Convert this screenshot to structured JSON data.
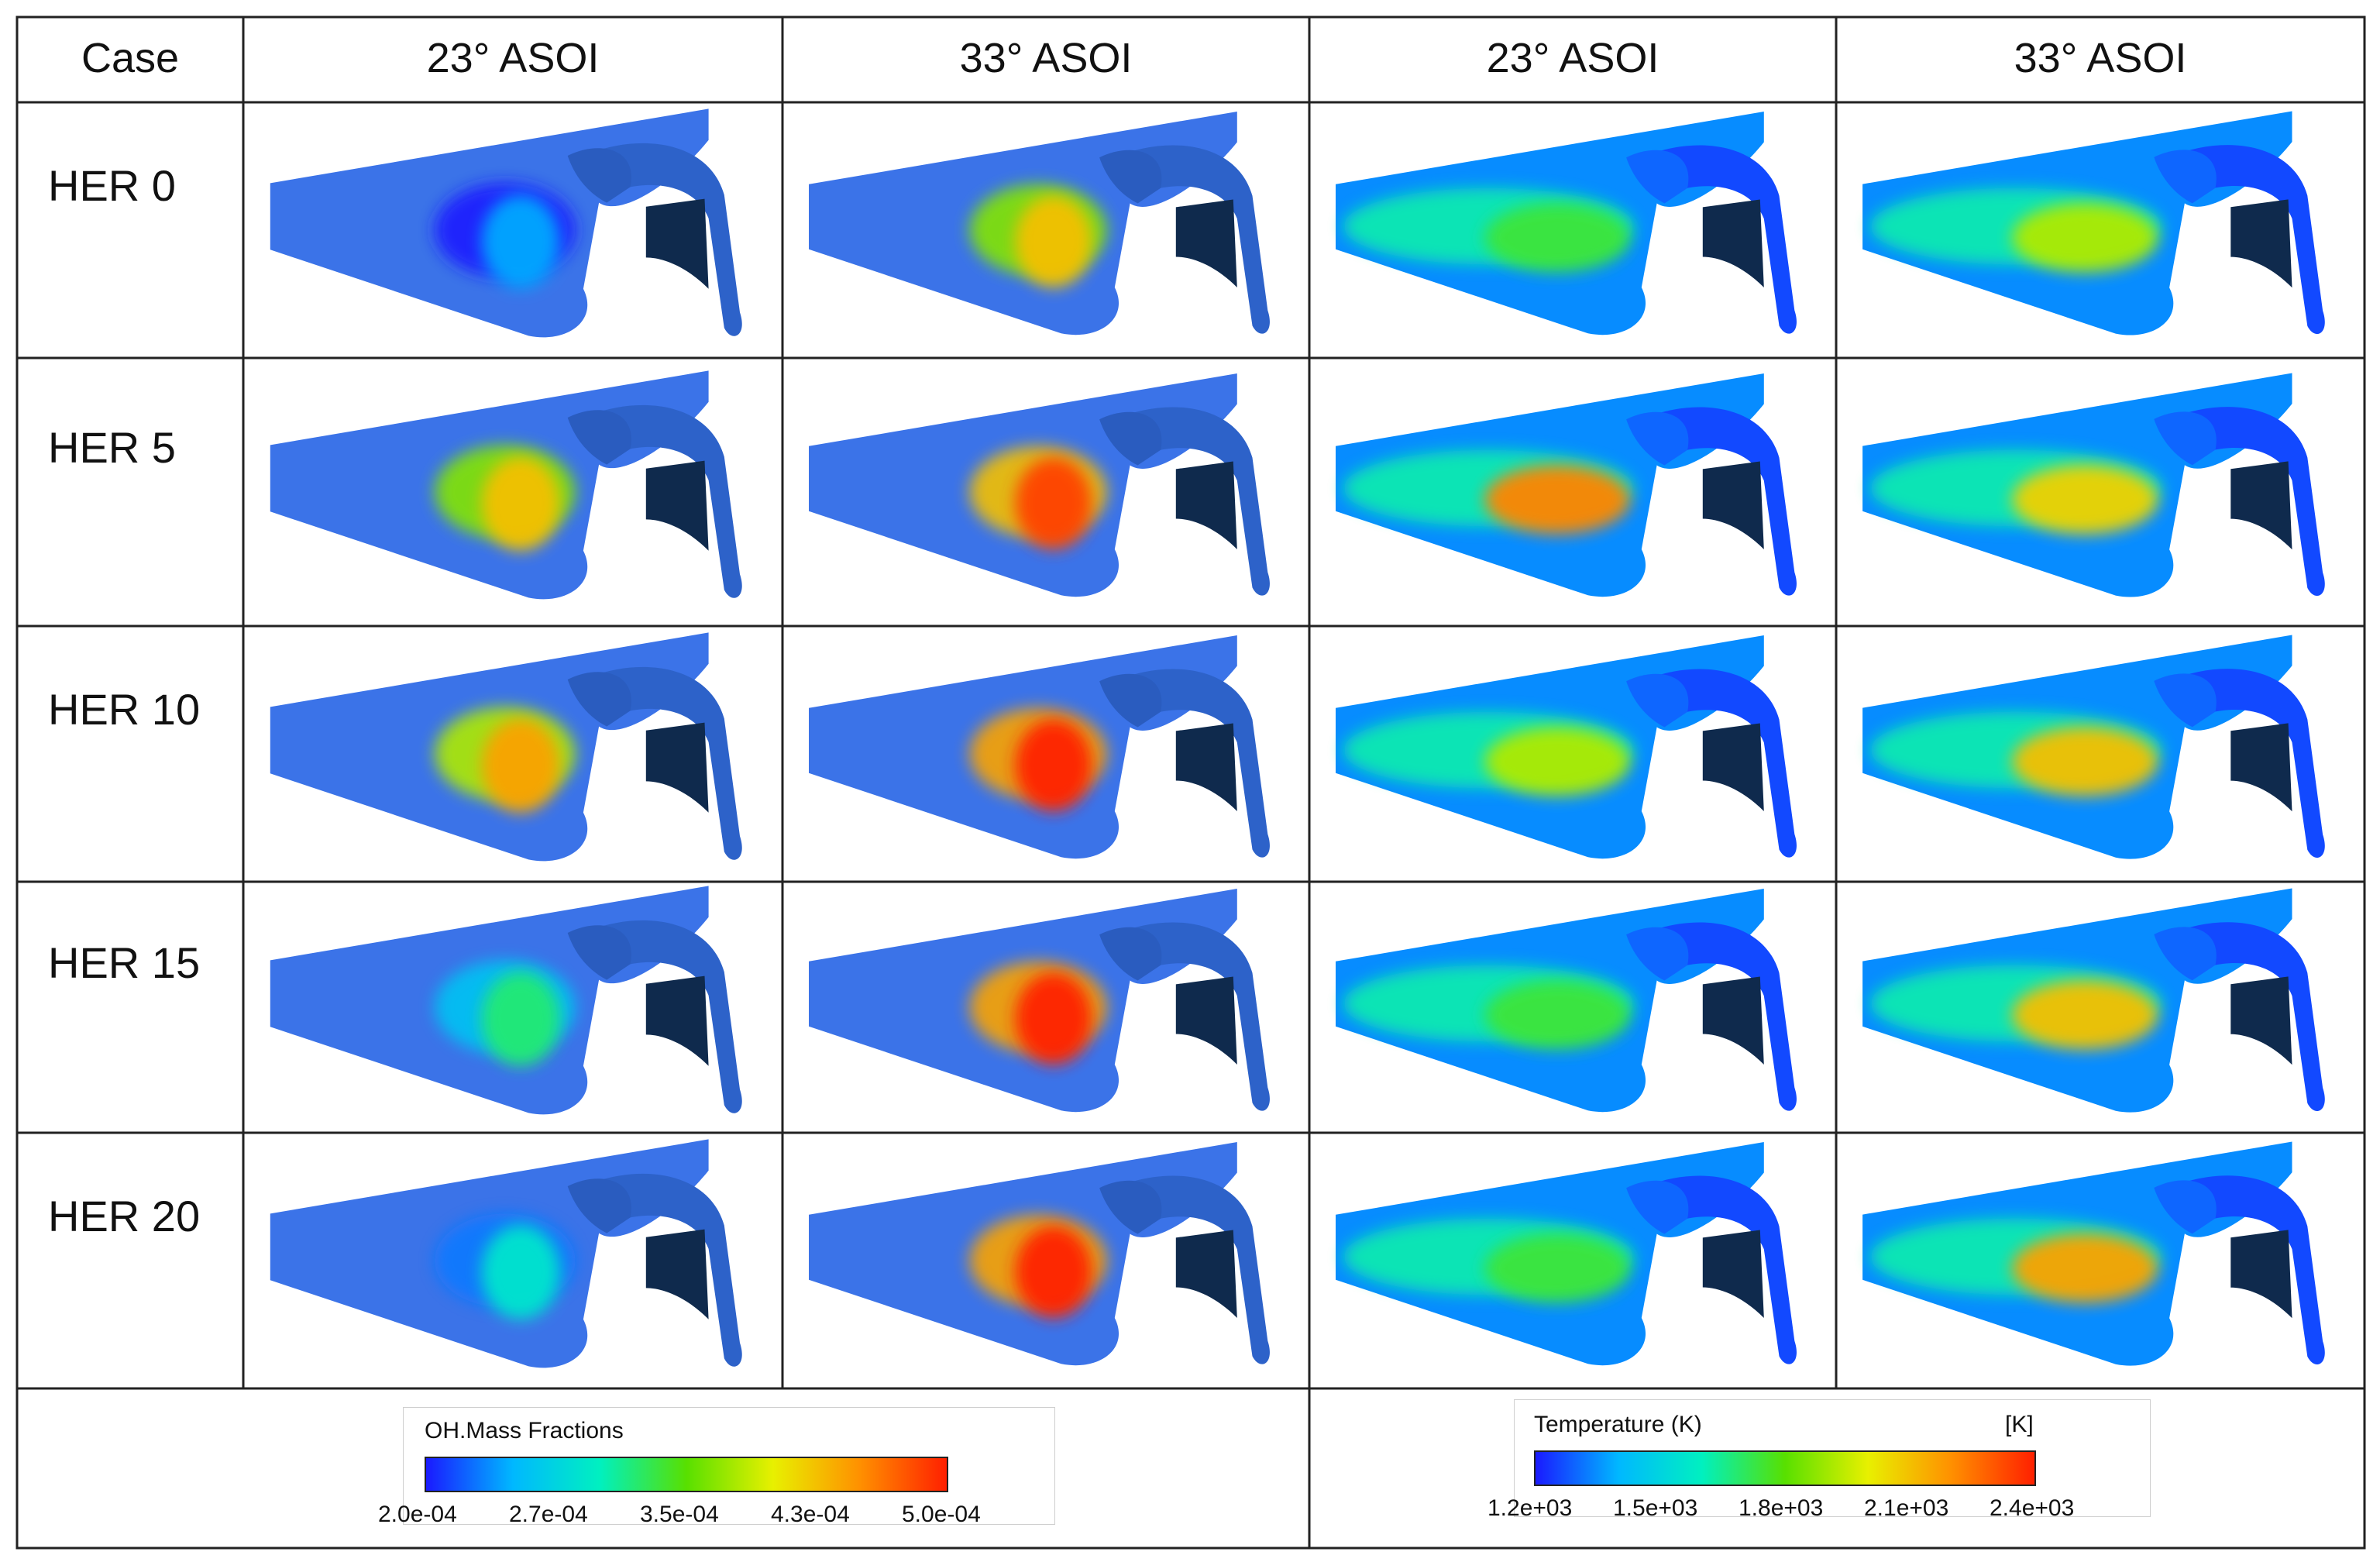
{
  "table": {
    "header": {
      "case_label": "Case",
      "columns": [
        "23° ASOI",
        "33° ASOI",
        "23° ASOI",
        "33° ASOI"
      ]
    },
    "rows": [
      {
        "label": "HER 0",
        "oh_23": 0.15,
        "oh_33": 0.75,
        "t_23": 0.45,
        "t_33": 0.6
      },
      {
        "label": "HER 5",
        "oh_23": 0.75,
        "oh_33": 0.95,
        "t_23": 0.85,
        "t_33": 0.72
      },
      {
        "label": "HER 10",
        "oh_23": 0.8,
        "oh_33": 1.0,
        "t_23": 0.6,
        "t_33": 0.75
      },
      {
        "label": "HER 15",
        "oh_23": 0.4,
        "oh_33": 1.0,
        "t_23": 0.45,
        "t_33": 0.75
      },
      {
        "label": "HER 20",
        "oh_23": 0.3,
        "oh_33": 1.0,
        "t_23": 0.45,
        "t_33": 0.8
      }
    ]
  },
  "legend_oh": {
    "title": "OH.Mass Fractions",
    "ticks": [
      "2.0e-04",
      "2.7e-04",
      "3.5e-04",
      "4.3e-04",
      "5.0e-04"
    ]
  },
  "legend_temp": {
    "title": "Temperature (K)",
    "unit": "[K]",
    "ticks": [
      "1.2e+03",
      "1.5e+03",
      "1.8e+03",
      "2.1e+03",
      "2.4e+03"
    ]
  },
  "colors": {
    "base_blue": "#3b73e8",
    "dark_face": "#0f2a4d",
    "colormap": [
      "#1a1aff",
      "#00b8ff",
      "#00f0c0",
      "#58e000",
      "#e8f000",
      "#ff9000",
      "#ff2000"
    ]
  }
}
